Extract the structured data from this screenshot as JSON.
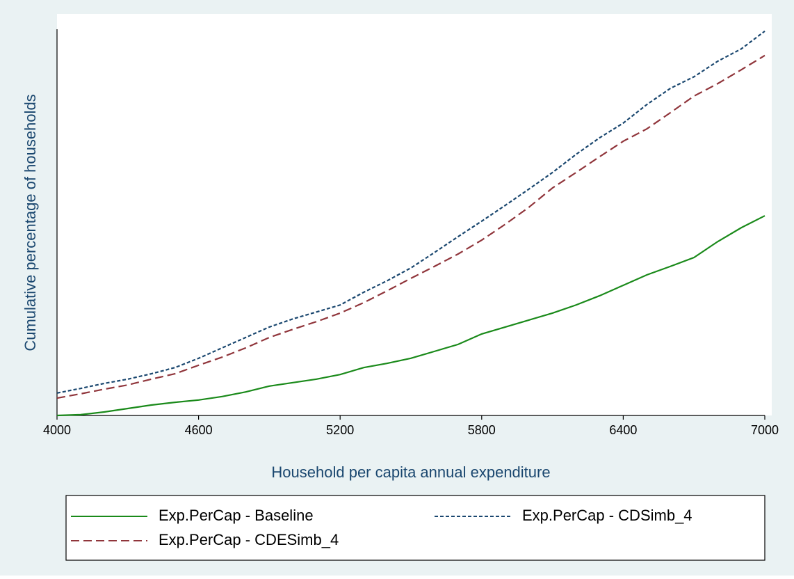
{
  "chart_data": {
    "type": "line",
    "y_label": "Cumulative percentage of households",
    "x_label": "Household per capita annual expenditure",
    "x": [
      4000,
      4100,
      4200,
      4300,
      4400,
      4500,
      4600,
      4700,
      4800,
      4900,
      5000,
      5100,
      5200,
      5300,
      5400,
      5500,
      5600,
      5700,
      5800,
      5900,
      6000,
      6100,
      6200,
      6300,
      6400,
      6500,
      6600,
      6700,
      6800,
      6900,
      7000
    ],
    "series": [
      {
        "name": "Exp.PerCap - Baseline",
        "color": "#1a8a1a",
        "dash": "none",
        "values": [
          0,
          0.2,
          0.9,
          1.8,
          2.7,
          3.4,
          4.0,
          4.9,
          6.1,
          7.6,
          8.5,
          9.4,
          10.6,
          12.4,
          13.5,
          14.8,
          16.6,
          18.4,
          21.1,
          22.9,
          24.7,
          26.5,
          28.6,
          31.0,
          33.7,
          36.4,
          38.6,
          40.9,
          45.0,
          48.6,
          51.7
        ]
      },
      {
        "name": "Exp.PerCap - CDSimb_4",
        "color": "#1a476f",
        "dash": "5 3",
        "values": [
          5.8,
          7.0,
          8.3,
          9.4,
          10.8,
          12.4,
          14.8,
          17.5,
          20.2,
          22.9,
          25.0,
          26.8,
          28.6,
          31.9,
          34.9,
          38.2,
          42.2,
          46.3,
          50.3,
          54.4,
          58.6,
          62.9,
          67.6,
          71.9,
          75.7,
          80.5,
          84.7,
          87.7,
          91.7,
          94.9,
          99.5
        ]
      },
      {
        "name": "Exp.PerCap - CDESimb_4",
        "color": "#90353b",
        "dash": "12 6",
        "values": [
          4.5,
          5.6,
          6.8,
          7.9,
          9.4,
          10.8,
          13.0,
          15.1,
          17.5,
          20.2,
          22.3,
          24.3,
          26.5,
          29.2,
          32.3,
          35.5,
          38.6,
          41.8,
          45.4,
          49.5,
          53.9,
          58.9,
          62.9,
          67.0,
          71.0,
          74.2,
          78.4,
          82.7,
          85.9,
          89.5,
          93.2
        ]
      }
    ],
    "xlim": [
      4000,
      7000
    ],
    "xticks": [
      4000,
      4600,
      5200,
      5800,
      6400,
      7000
    ],
    "ylim": [
      0,
      100
    ],
    "grid": false
  }
}
